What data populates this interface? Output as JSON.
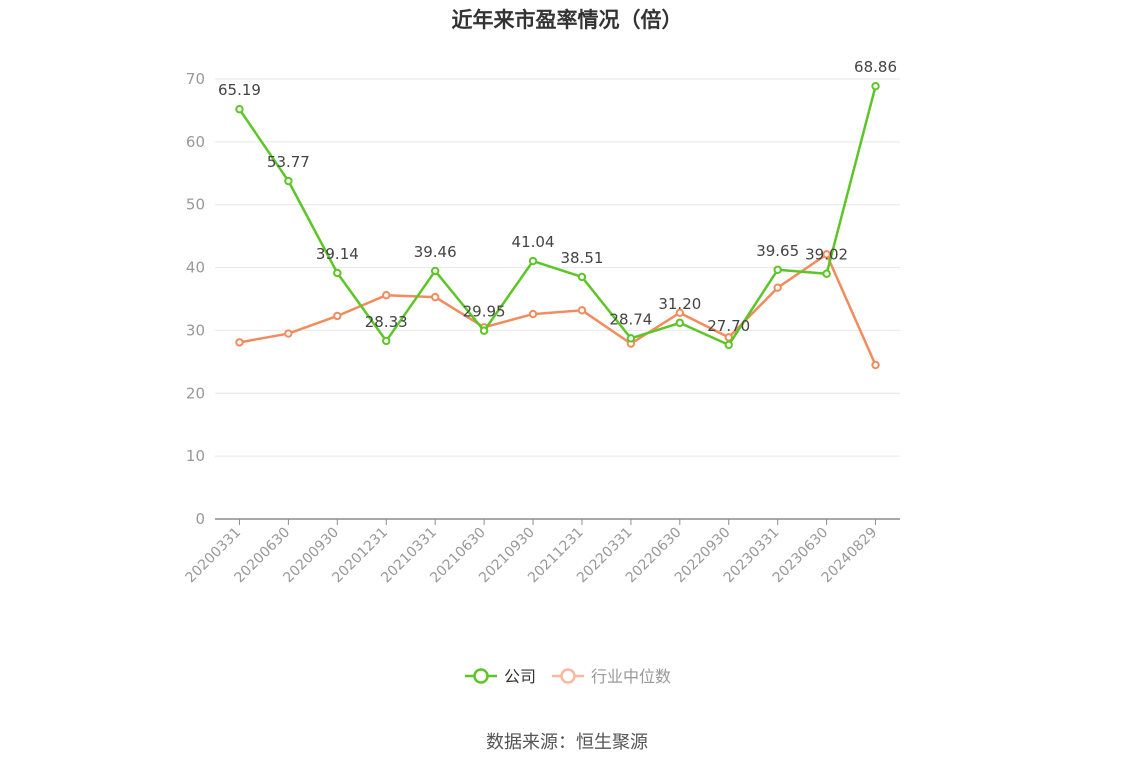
{
  "chart_data": {
    "type": "line",
    "title": "近年来市盈率情况（倍）",
    "source": "数据来源：恒生聚源",
    "categories": [
      "20200331",
      "20200630",
      "20200930",
      "20201231",
      "20210331",
      "20210630",
      "20210930",
      "20211231",
      "20220331",
      "20220630",
      "20220930",
      "20230331",
      "20230630",
      "20240829"
    ],
    "ylim": [
      0,
      70
    ],
    "yticks": [
      0,
      10,
      20,
      30,
      40,
      50,
      60,
      70
    ],
    "grid": true,
    "legend_position": "bottom",
    "series": [
      {
        "name": "公司",
        "color": "#5cc627",
        "values": [
          65.19,
          53.77,
          39.14,
          28.33,
          39.46,
          29.95,
          41.04,
          38.51,
          28.74,
          31.2,
          27.7,
          39.65,
          39.02,
          68.86
        ],
        "labels": [
          "65.19",
          "53.77",
          "39.14",
          "28.33",
          "39.46",
          "29.95",
          "41.04",
          "38.51",
          "28.74",
          "31.20",
          "27.70",
          "39.65",
          "39.02",
          "68.86"
        ]
      },
      {
        "name": "行业中位数",
        "color": "#f28c5c",
        "values": [
          28.1,
          29.5,
          32.3,
          35.6,
          35.3,
          30.5,
          32.6,
          33.2,
          27.9,
          32.8,
          28.9,
          36.8,
          42.1,
          24.5
        ]
      }
    ]
  }
}
